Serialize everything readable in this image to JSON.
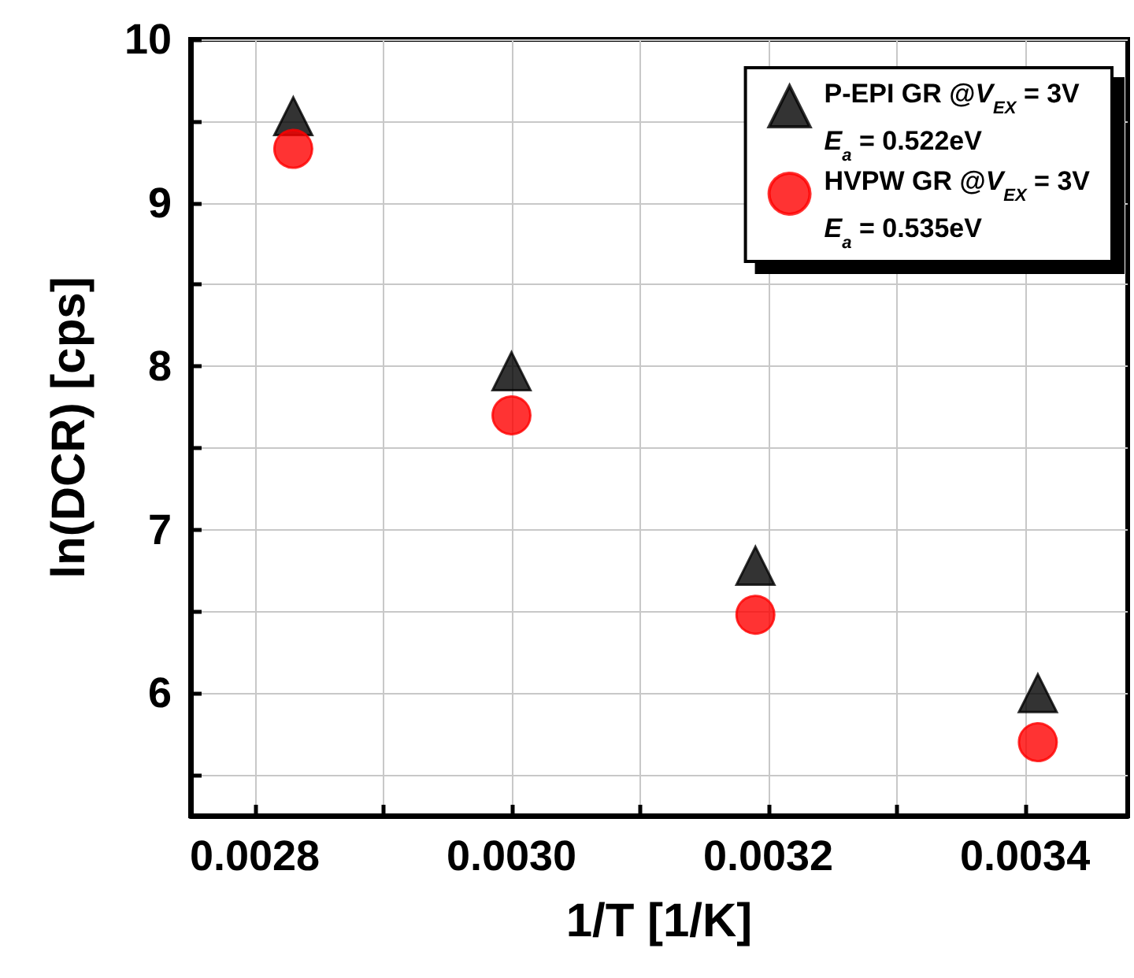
{
  "chart_data": {
    "type": "scatter",
    "xlabel": "1/T [1/K]",
    "ylabel": "ln(DCR) [cps]",
    "xlim": [
      0.00275,
      0.00348
    ],
    "xticks": [
      {
        "value": 0.0028,
        "label": "0.0028"
      },
      {
        "value": 0.0029,
        "label": null
      },
      {
        "value": 0.003,
        "label": "0.0030"
      },
      {
        "value": 0.0031,
        "label": null
      },
      {
        "value": 0.0032,
        "label": "0.0032"
      },
      {
        "value": 0.0033,
        "label": null
      },
      {
        "value": 0.0034,
        "label": "0.0034"
      }
    ],
    "ylim": [
      5.25,
      10
    ],
    "yticks": [
      {
        "value": 5.5,
        "label": null
      },
      6,
      {
        "value": 6.5,
        "label": null
      },
      7,
      {
        "value": 7.5,
        "label": null
      },
      8,
      {
        "value": 8.5,
        "label": null
      },
      9,
      {
        "value": 9.5,
        "label": null
      },
      10
    ],
    "grid": true,
    "legend": "top right",
    "annotations": [
      "E$_{a}$ = 0.522eV",
      "E$_{a}$ = 0.535eV"
    ],
    "series": [
      {
        "name": "P-EPI GR @V$_{EX}$ = 3V",
        "color": "#000000",
        "marker": "triangle",
        "x": [
          0.00283,
          0.003,
          0.00319,
          0.00341
        ],
        "values": [
          9.53,
          7.97,
          6.78,
          6.0
        ]
      },
      {
        "name": "HVPW GR @V$_{EX}$ = 3V",
        "color": "#ff0000",
        "marker": "circle",
        "x": [
          0.00283,
          0.003,
          0.00319,
          0.00341
        ],
        "values": [
          9.33,
          7.7,
          6.48,
          5.7
        ]
      }
    ]
  }
}
